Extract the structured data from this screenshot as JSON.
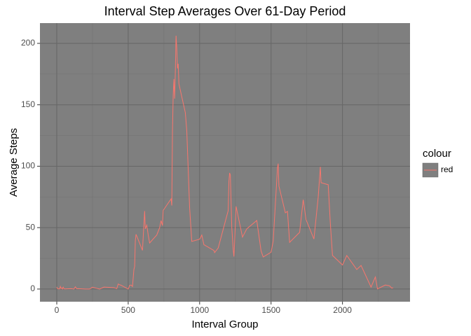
{
  "chart_data": {
    "type": "line",
    "title": "Interval Step Averages Over 61-Day Period",
    "x_label": "Interval Group",
    "y_label": "Average Steps",
    "legend_title": "colour",
    "legend_position": "right",
    "xlim": [
      -117.75,
      2472.75
    ],
    "ylim": [
      -10.3,
      216.5
    ],
    "xticks": [
      0,
      500,
      1000,
      1500,
      2000
    ],
    "yticks": [
      0,
      50,
      100,
      150,
      200
    ],
    "x_minor_grid": [
      250,
      750,
      1250,
      1750,
      2250
    ],
    "y_minor_grid": [
      25,
      75,
      125,
      175
    ],
    "grid": true,
    "series": [
      {
        "name": "red",
        "color": "#F8766D",
        "x": [
          0,
          5,
          10,
          15,
          20,
          25,
          30,
          35,
          40,
          45,
          50,
          55,
          100,
          110,
          120,
          130,
          140,
          150,
          200,
          230,
          250,
          300,
          330,
          400,
          420,
          430,
          440,
          450,
          500,
          510,
          520,
          530,
          540,
          545,
          550,
          555,
          600,
          615,
          620,
          630,
          640,
          650,
          700,
          720,
          730,
          740,
          745,
          800,
          805,
          810,
          815,
          820,
          825,
          830,
          835,
          840,
          845,
          850,
          855,
          900,
          910,
          930,
          945,
          1000,
          1015,
          1030,
          1100,
          1105,
          1130,
          1200,
          1205,
          1210,
          1215,
          1225,
          1235,
          1240,
          1245,
          1255,
          1300,
          1330,
          1400,
          1430,
          1445,
          1500,
          1515,
          1545,
          1550,
          1555,
          1600,
          1615,
          1630,
          1700,
          1725,
          1730,
          1745,
          1800,
          1830,
          1845,
          1850,
          1900,
          1915,
          1930,
          2000,
          2030,
          2100,
          2130,
          2200,
          2230,
          2245,
          2300,
          2330,
          2345,
          2355
        ],
        "values": [
          1.7,
          0.3,
          0.1,
          0.2,
          0.1,
          2.1,
          0.5,
          0.9,
          0,
          1.5,
          0.3,
          0.1,
          0.3,
          0.2,
          0,
          1.8,
          0.2,
          0.3,
          0,
          0,
          1.5,
          0,
          1.6,
          1.2,
          0.3,
          4.1,
          3.5,
          3.1,
          0,
          3.0,
          3.3,
          2.1,
          16,
          18.3,
          39.5,
          44.5,
          31.5,
          63.5,
          49,
          52,
          44,
          37.5,
          44,
          49.9,
          55.7,
          51.7,
          64,
          73.4,
          68,
          129,
          158,
          171,
          155,
          177,
          206.2,
          195.9,
          179.6,
          183.4,
          167,
          143.5,
          128.8,
          66.2,
          38.8,
          40.6,
          44.0,
          36.1,
          31.4,
          29.7,
          33.4,
          63.9,
          87.7,
          94.5,
          92.8,
          50.2,
          32.4,
          26.5,
          38.0,
          67.3,
          42.3,
          49.0,
          55.8,
          31.1,
          26.1,
          30.0,
          39.0,
          98.7,
          102.1,
          83.9,
          62.1,
          63.2,
          38.0,
          46.2,
          72.7,
          68.9,
          56.5,
          40.7,
          74.7,
          99.5,
          86.6,
          84.9,
          53.4,
          27.4,
          19.6,
          27.3,
          15.9,
          19.2,
          1.6,
          9.8,
          0.1,
          3.3,
          2.6,
          0.7,
          1.1
        ]
      }
    ]
  }
}
